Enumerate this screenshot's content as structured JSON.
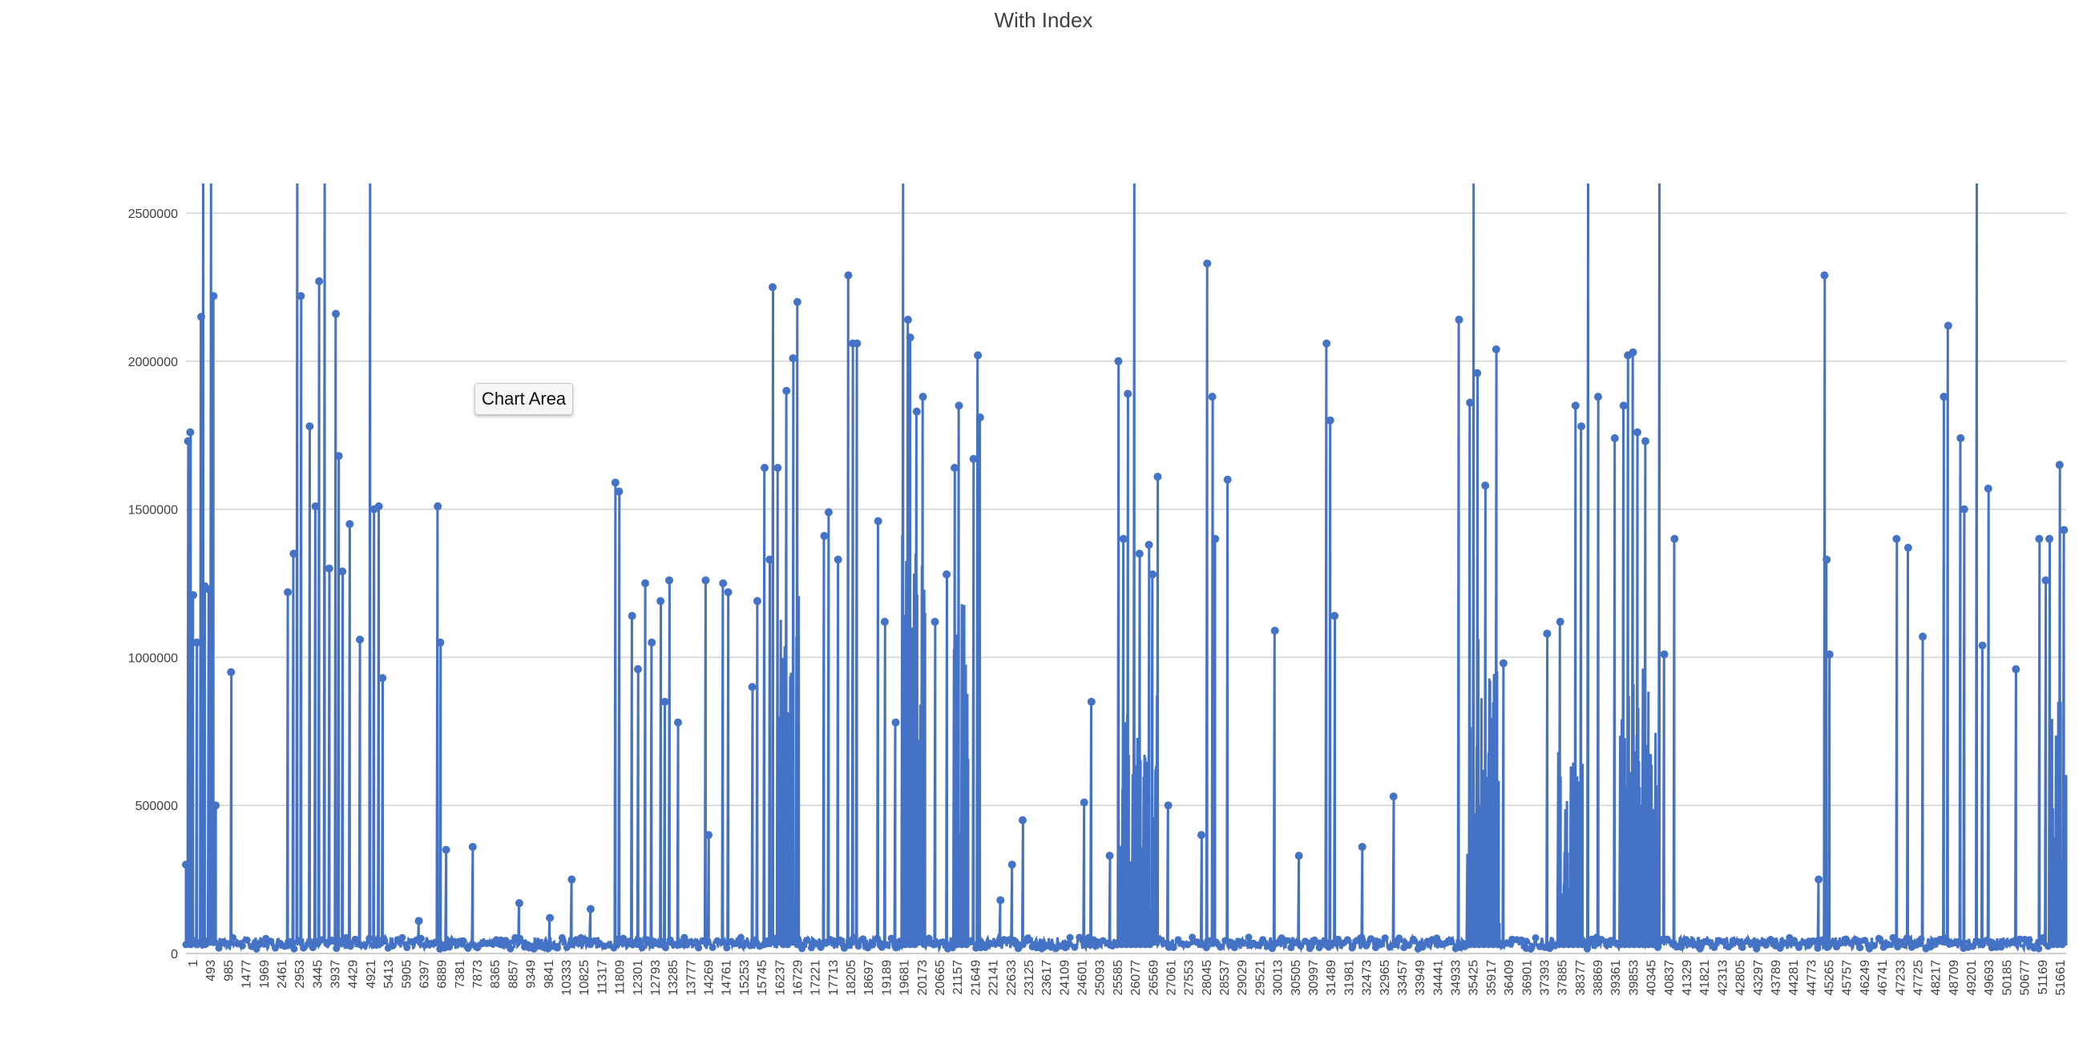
{
  "chart_data": {
    "type": "line",
    "title": "With Index",
    "xlabel": "",
    "ylabel": "",
    "ylim": [
      0,
      2500000
    ],
    "y_ticks": [
      0,
      500000,
      1000000,
      1500000,
      2000000,
      2500000
    ],
    "y_tick_labels": [
      "0",
      "500000",
      "1000000",
      "1500000",
      "2000000",
      "2500000"
    ],
    "x_range": [
      1,
      51661
    ],
    "x_tick_labels": [
      "1",
      "493",
      "985",
      "1477",
      "1969",
      "2461",
      "2953",
      "3445",
      "3937",
      "4429",
      "4921",
      "5413",
      "5905",
      "6397",
      "6889",
      "7381",
      "7873",
      "8365",
      "8857",
      "9349",
      "9841",
      "10333",
      "10825",
      "11317",
      "11809",
      "12301",
      "12793",
      "13285",
      "13777",
      "14269",
      "14761",
      "15253",
      "15745",
      "16237",
      "16729",
      "17221",
      "17713",
      "18205",
      "18697",
      "19189",
      "19681",
      "20173",
      "20665",
      "21157",
      "21649",
      "22141",
      "22633",
      "23125",
      "23617",
      "24109",
      "24601",
      "25093",
      "25585",
      "26077",
      "26569",
      "27061",
      "27553",
      "28045",
      "28537",
      "29029",
      "29521",
      "30013",
      "30505",
      "30997",
      "31489",
      "31981",
      "32473",
      "32965",
      "33457",
      "33949",
      "34441",
      "34933",
      "35425",
      "35917",
      "36409",
      "36901",
      "37393",
      "37885",
      "38377",
      "38869",
      "39361",
      "39853",
      "40345",
      "40837",
      "41329",
      "41821",
      "42313",
      "42805",
      "43297",
      "43789",
      "44281",
      "44773",
      "45265",
      "45757",
      "46249",
      "46741",
      "47233",
      "47725",
      "48217",
      "48709",
      "49201",
      "49693",
      "50185",
      "50677",
      "51169",
      "51661"
    ],
    "grid": "horizontal",
    "legend": "none",
    "series_color": "#4472C4",
    "peaks": [
      [
        1,
        300000
      ],
      [
        60,
        1730000
      ],
      [
        120,
        1760000
      ],
      [
        200,
        1210000
      ],
      [
        300,
        1050000
      ],
      [
        420,
        2150000
      ],
      [
        470,
        2600000
      ],
      [
        520,
        1240000
      ],
      [
        620,
        1230000
      ],
      [
        700,
        2600000
      ],
      [
        760,
        2220000
      ],
      [
        820,
        500000
      ],
      [
        1240,
        950000
      ],
      [
        2800,
        1220000
      ],
      [
        2960,
        1350000
      ],
      [
        3050,
        2600000
      ],
      [
        3160,
        2220000
      ],
      [
        3400,
        1780000
      ],
      [
        3560,
        1510000
      ],
      [
        3660,
        2270000
      ],
      [
        3820,
        2600000
      ],
      [
        3940,
        1300000
      ],
      [
        4120,
        2160000
      ],
      [
        4200,
        1680000
      ],
      [
        4300,
        1290000
      ],
      [
        4500,
        1450000
      ],
      [
        4780,
        1060000
      ],
      [
        5060,
        2600000
      ],
      [
        5170,
        1500000
      ],
      [
        5300,
        1510000
      ],
      [
        5400,
        930000
      ],
      [
        6400,
        110000
      ],
      [
        6920,
        1510000
      ],
      [
        6990,
        1050000
      ],
      [
        7150,
        350000
      ],
      [
        7880,
        360000
      ],
      [
        9160,
        170000
      ],
      [
        10000,
        120000
      ],
      [
        10600,
        250000
      ],
      [
        11120,
        150000
      ],
      [
        11800,
        1590000
      ],
      [
        11900,
        1560000
      ],
      [
        12260,
        1140000
      ],
      [
        12420,
        960000
      ],
      [
        12620,
        1250000
      ],
      [
        12800,
        1050000
      ],
      [
        13040,
        1190000
      ],
      [
        13160,
        850000
      ],
      [
        13280,
        1260000
      ],
      [
        13520,
        780000
      ],
      [
        14280,
        1260000
      ],
      [
        14360,
        400000
      ],
      [
        14760,
        1250000
      ],
      [
        14900,
        1220000
      ],
      [
        15560,
        900000
      ],
      [
        15700,
        1190000
      ],
      [
        15900,
        1640000
      ],
      [
        16040,
        1330000
      ],
      [
        16120,
        2250000
      ],
      [
        16260,
        1640000
      ],
      [
        16500,
        1900000
      ],
      [
        16680,
        2010000
      ],
      [
        16800,
        2200000
      ],
      [
        17540,
        1410000
      ],
      [
        17660,
        1490000
      ],
      [
        17920,
        1330000
      ],
      [
        18200,
        2290000
      ],
      [
        18320,
        2060000
      ],
      [
        18440,
        2060000
      ],
      [
        19020,
        1460000
      ],
      [
        19200,
        1120000
      ],
      [
        19500,
        780000
      ],
      [
        19700,
        2600000
      ],
      [
        19840,
        2140000
      ],
      [
        19900,
        2080000
      ],
      [
        20080,
        1830000
      ],
      [
        20250,
        1880000
      ],
      [
        20580,
        1120000
      ],
      [
        20900,
        1280000
      ],
      [
        21120,
        1640000
      ],
      [
        21240,
        1850000
      ],
      [
        21400,
        710000
      ],
      [
        21640,
        1670000
      ],
      [
        21760,
        2020000
      ],
      [
        21820,
        1810000
      ],
      [
        22380,
        180000
      ],
      [
        22700,
        300000
      ],
      [
        22990,
        450000
      ],
      [
        24680,
        510000
      ],
      [
        24880,
        850000
      ],
      [
        25380,
        330000
      ],
      [
        25620,
        2000000
      ],
      [
        25760,
        1400000
      ],
      [
        25880,
        1890000
      ],
      [
        26060,
        2600000
      ],
      [
        26200,
        1350000
      ],
      [
        26460,
        1380000
      ],
      [
        26560,
        1280000
      ],
      [
        26700,
        1610000
      ],
      [
        26990,
        500000
      ],
      [
        27900,
        400000
      ],
      [
        28060,
        2330000
      ],
      [
        28200,
        1880000
      ],
      [
        28280,
        1400000
      ],
      [
        28620,
        1600000
      ],
      [
        29920,
        1090000
      ],
      [
        30580,
        330000
      ],
      [
        31340,
        2060000
      ],
      [
        31440,
        1800000
      ],
      [
        31560,
        1140000
      ],
      [
        32320,
        360000
      ],
      [
        33180,
        530000
      ],
      [
        34980,
        2140000
      ],
      [
        35280,
        1860000
      ],
      [
        35380,
        2600000
      ],
      [
        35480,
        1960000
      ],
      [
        35700,
        1580000
      ],
      [
        36000,
        2040000
      ],
      [
        36200,
        980000
      ],
      [
        37400,
        1080000
      ],
      [
        37760,
        1120000
      ],
      [
        38180,
        1850000
      ],
      [
        38340,
        1780000
      ],
      [
        38520,
        2600000
      ],
      [
        38800,
        1880000
      ],
      [
        39260,
        1740000
      ],
      [
        39500,
        1850000
      ],
      [
        39620,
        2020000
      ],
      [
        39760,
        2030000
      ],
      [
        39880,
        1760000
      ],
      [
        40100,
        1730000
      ],
      [
        40480,
        2600000
      ],
      [
        40620,
        1010000
      ],
      [
        40900,
        1400000
      ],
      [
        44860,
        250000
      ],
      [
        45020,
        2290000
      ],
      [
        45080,
        1330000
      ],
      [
        45160,
        1010000
      ],
      [
        47000,
        1400000
      ],
      [
        47320,
        1370000
      ],
      [
        47720,
        1070000
      ],
      [
        48300,
        1880000
      ],
      [
        48420,
        2120000
      ],
      [
        48760,
        1740000
      ],
      [
        48860,
        1500000
      ],
      [
        49200,
        2600000
      ],
      [
        49360,
        1040000
      ],
      [
        49520,
        1570000
      ],
      [
        50280,
        960000
      ],
      [
        50920,
        1400000
      ],
      [
        51100,
        1260000
      ],
      [
        51200,
        1400000
      ],
      [
        51480,
        1650000
      ],
      [
        51600,
        1430000
      ]
    ],
    "dense_regions": [
      [
        16300,
        16850,
        1400000
      ],
      [
        19680,
        20300,
        1500000
      ],
      [
        25700,
        26700,
        900000
      ],
      [
        35200,
        36100,
        1100000
      ],
      [
        39400,
        40400,
        1000000
      ],
      [
        37700,
        38400,
        700000
      ],
      [
        21100,
        21500,
        1200000
      ],
      [
        51200,
        51661,
        1000000
      ]
    ]
  },
  "tooltip_text": "Chart Area"
}
